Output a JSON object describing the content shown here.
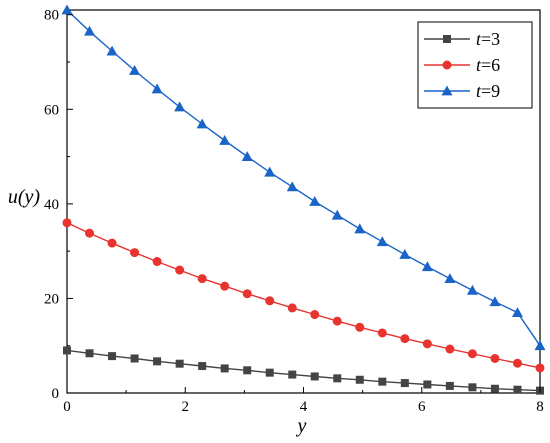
{
  "chart_data": {
    "type": "line",
    "xlabel": "y",
    "ylabel": "u(y)",
    "xlim": [
      0,
      8
    ],
    "ylim": [
      0,
      81
    ],
    "x_ticks": [
      0,
      2,
      4,
      6,
      8
    ],
    "y_ticks": [
      0,
      20,
      40,
      60,
      80
    ],
    "grid": false,
    "legend_position": "top-right",
    "x": [
      0,
      0.381,
      0.762,
      1.143,
      1.524,
      1.905,
      2.286,
      2.667,
      3.048,
      3.429,
      3.81,
      4.19,
      4.571,
      4.952,
      5.333,
      5.714,
      6.095,
      6.476,
      6.857,
      7.238,
      7.619,
      8
    ],
    "series": [
      {
        "name": "t=3",
        "legend_var": "t",
        "legend_val": "=3",
        "color": "#444444",
        "marker": "square",
        "values": [
          9.0,
          8.4,
          7.8,
          7.3,
          6.7,
          6.2,
          5.7,
          5.2,
          4.8,
          4.3,
          3.9,
          3.5,
          3.1,
          2.8,
          2.4,
          2.1,
          1.8,
          1.5,
          1.2,
          0.9,
          0.7,
          0.5
        ]
      },
      {
        "name": "t=6",
        "legend_var": "t",
        "legend_val": "=6",
        "color": "#e8332f",
        "marker": "circle",
        "values": [
          36.0,
          33.8,
          31.7,
          29.7,
          27.8,
          26.0,
          24.2,
          22.6,
          21.0,
          19.5,
          18.0,
          16.6,
          15.2,
          13.9,
          12.7,
          11.5,
          10.4,
          9.3,
          8.3,
          7.3,
          6.3,
          5.3
        ]
      },
      {
        "name": "t=9",
        "legend_var": "t",
        "legend_val": "=9",
        "color": "#1a64c8",
        "marker": "triangle",
        "values": [
          81.0,
          76.5,
          72.3,
          68.2,
          64.3,
          60.5,
          56.9,
          53.4,
          50.0,
          46.7,
          43.6,
          40.5,
          37.6,
          34.7,
          32.0,
          29.3,
          26.7,
          24.2,
          21.7,
          19.3,
          17.0,
          10.0
        ]
      }
    ]
  }
}
